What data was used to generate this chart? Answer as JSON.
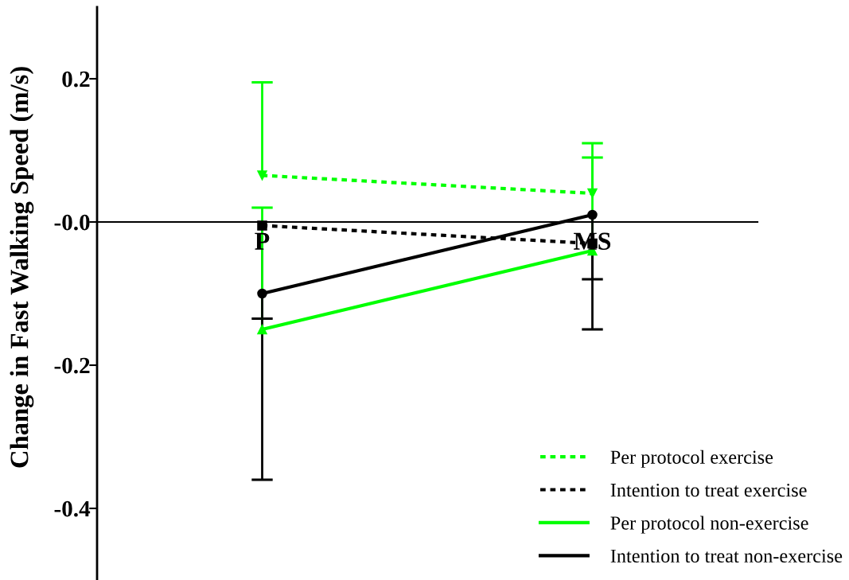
{
  "chart_data": {
    "type": "line",
    "ylabel": "Change in Fast Walking Speed (m/s)",
    "categories": [
      "P",
      "MS"
    ],
    "series": [
      {
        "name": "Per protocol exercise",
        "color": "#00ff00",
        "values": [
          0.065,
          0.04
        ],
        "errors": [
          [
            0.065,
            0.195
          ],
          [
            0.04,
            0.09
          ]
        ],
        "marker": "triangle-down",
        "line_style": "dotted"
      },
      {
        "name": "Intention to treat exercise",
        "color": "#000000",
        "values": [
          -0.005,
          -0.03
        ],
        "errors": [
          [
            -0.135,
            -0.005
          ],
          [
            -0.08,
            -0.03
          ]
        ],
        "marker": "square",
        "line_style": "dotted"
      },
      {
        "name": "Per protocol non-exercise",
        "color": "#00ff00",
        "values": [
          -0.15,
          -0.04
        ],
        "errors": [
          [
            -0.15,
            0.02
          ],
          [
            -0.04,
            0.11
          ]
        ],
        "marker": "triangle",
        "line_style": "solid"
      },
      {
        "name": "Intention to treat non-exercise",
        "color": "#000000",
        "values": [
          -0.1,
          0.01
        ],
        "errors": [
          [
            -0.36,
            -0.1
          ],
          [
            -0.15,
            0.01
          ]
        ],
        "marker": "circle",
        "line_style": "solid"
      }
    ],
    "ylim": [
      -0.5,
      0.3
    ],
    "yticks": [
      -0.4,
      -0.2,
      {
        "value": 0,
        "label": "-0.0"
      },
      0.2
    ],
    "legend": "bottom right"
  }
}
